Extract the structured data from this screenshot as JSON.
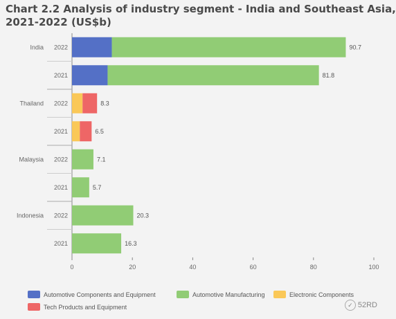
{
  "chart_data": {
    "type": "bar",
    "orientation": "horizontal",
    "stacked": true,
    "title_lines": [
      "Chart 2.2 Analysis of industry segment - India and Southeast Asia,",
      "2021-2022  (US$b)"
    ],
    "groups": [
      {
        "name": "India",
        "rows": [
          {
            "year": "2022",
            "values": [
              13.2,
              77.5,
              0,
              0
            ],
            "total_label": "90.7"
          },
          {
            "year": "2021",
            "values": [
              11.8,
              70.0,
              0,
              0
            ],
            "total_label": "81.8"
          }
        ]
      },
      {
        "name": "Thailand",
        "rows": [
          {
            "year": "2022",
            "values": [
              0,
              0,
              3.5,
              4.8
            ],
            "total_label": "8.3"
          },
          {
            "year": "2021",
            "values": [
              0,
              0,
              2.6,
              3.9
            ],
            "total_label": "6.5"
          }
        ]
      },
      {
        "name": "Malaysia",
        "rows": [
          {
            "year": "2022",
            "values": [
              0,
              7.1,
              0,
              0
            ],
            "total_label": "7.1"
          },
          {
            "year": "2021",
            "values": [
              0,
              5.7,
              0,
              0
            ],
            "total_label": "5.7"
          }
        ]
      },
      {
        "name": "Indonesia",
        "rows": [
          {
            "year": "2022",
            "values": [
              0,
              20.3,
              0,
              0
            ],
            "total_label": "20.3"
          },
          {
            "year": "2021",
            "values": [
              0,
              16.3,
              0,
              0
            ],
            "total_label": "16.3"
          }
        ]
      }
    ],
    "series": [
      {
        "name": "Automotive Components and Equipment",
        "color": "#5470c6"
      },
      {
        "name": "Automotive Manufacturing",
        "color": "#91cc75"
      },
      {
        "name": "Electronic Components",
        "color": "#fac858"
      },
      {
        "name": "Tech Products and Equipment",
        "color": "#ee6666"
      }
    ],
    "xlim": [
      0,
      100
    ],
    "xticks": [
      0,
      20,
      40,
      60,
      80,
      100
    ],
    "grid": false,
    "legend_position": "bottom"
  },
  "watermark": "52RD"
}
